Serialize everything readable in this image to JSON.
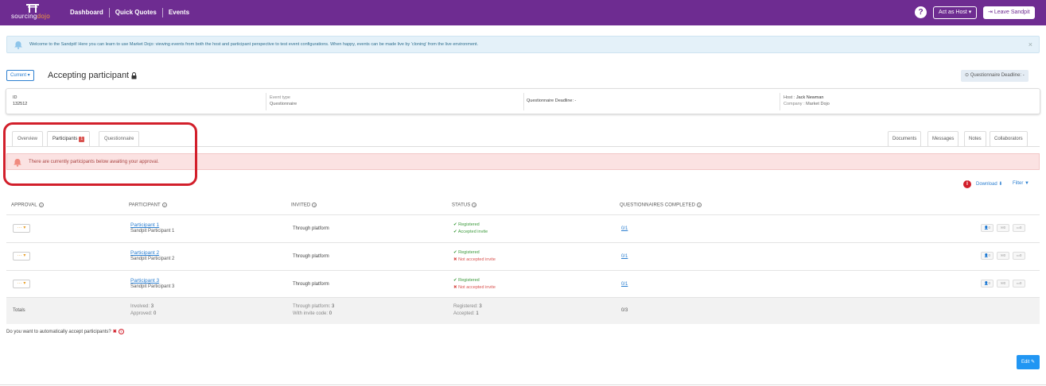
{
  "brand": {
    "logo_text_a": "sourcing",
    "logo_text_b": "dojo",
    "accent": "#6e2c91",
    "accent_orange": "#f49a3d"
  },
  "nav": {
    "items": [
      {
        "label": "Dashboard"
      },
      {
        "label": "Quick Quotes"
      },
      {
        "label": "Events"
      }
    ],
    "help_label": "?",
    "act_as_host": "Act as Host ▾",
    "leave_sandpit": "Leave Sandpit"
  },
  "info_banner": {
    "text": "Welcome to the Sandpit! Here you can learn to use Market Dojo: viewing events from both the host and participant perspective to test event configurations. When happy, events can be made live by 'cloning' from the live environment.",
    "close": "×",
    "icon": "bell-icon"
  },
  "title_row": {
    "current_label": "Current ▾",
    "title": "Accepting participant",
    "deadline_pill": "Questionnaire Deadline: -"
  },
  "details": {
    "id_label": "ID",
    "id_value": "132512",
    "event_type_label": "Event type",
    "event_type_value": "Questionnaire",
    "deadline": "Questionnaire Deadline: -",
    "host_label": "Host :",
    "host_value": "Jack Newman",
    "company_label": "Company :",
    "company_value": "Market Dojo"
  },
  "tabs": {
    "left": [
      {
        "label": "Overview"
      },
      {
        "label": "Participants",
        "badge": "1"
      },
      {
        "label": "Questionnaire"
      }
    ],
    "right": [
      {
        "label": "Documents"
      },
      {
        "label": "Messages"
      },
      {
        "label": "Notes"
      },
      {
        "label": "Collaborators"
      }
    ]
  },
  "warning_banner": {
    "text": "There are currently participants below awaiting your approval."
  },
  "actions": {
    "info": "i",
    "download": "Download ⬇",
    "filter": "Filter ▼"
  },
  "table": {
    "headers": [
      "APPROVAL",
      "PARTICIPANT",
      "INVITED",
      "STATUS",
      "QUESTIONNAIRES COMPLETED"
    ],
    "rows": [
      {
        "approval": "··· ▾",
        "name": "Participant 1",
        "sub": "Sandpit Participant 1",
        "invited": "Through platform",
        "status1": "✔ Registered",
        "status2": "✔ Accepted invite",
        "status2_ok": true,
        "completed": "0/1",
        "counts": [
          "0",
          "0",
          "0"
        ]
      },
      {
        "approval": "··· ▾",
        "name": "Participant 2",
        "sub": "Sandpit Participant 2",
        "invited": "Through platform",
        "status1": "✔ Registered",
        "status2": "✖ Not accepted invite",
        "status2_ok": false,
        "completed": "0/1",
        "counts": [
          "0",
          "0",
          "0"
        ]
      },
      {
        "approval": "··· ▾",
        "name": "Participant 3",
        "sub": "Sandpit Participant 3",
        "invited": "Through platform",
        "status1": "✔ Registered",
        "status2": "✖ Not accepted invite",
        "status2_ok": false,
        "completed": "0/1",
        "counts": [
          "0",
          "0",
          "0"
        ]
      }
    ],
    "totals": {
      "label": "Totals",
      "involved_label": "Involved:",
      "involved": "3",
      "approved_label": "Approved:",
      "approved": "0",
      "through_label": "Through platform:",
      "through": "3",
      "invite_code_label": "With invite code:",
      "invite_code": "0",
      "registered_label": "Registered:",
      "registered": "3",
      "accepted_label": "Accepted:",
      "accepted": "1",
      "completed": "0/3"
    }
  },
  "auto_accept": {
    "question": "Do you want to automatically accept participants?",
    "answer": "✖"
  },
  "edit_button": "Edit ✎"
}
